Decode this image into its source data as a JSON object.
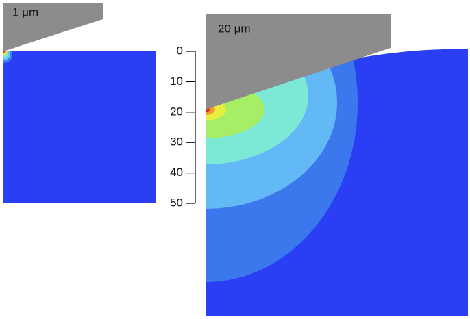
{
  "left_panel": {
    "label": "1 μm"
  },
  "right_panel": {
    "label": "20 μm"
  },
  "depth_axis": {
    "ticks": [
      0,
      10,
      20,
      30,
      40,
      50
    ]
  }
}
